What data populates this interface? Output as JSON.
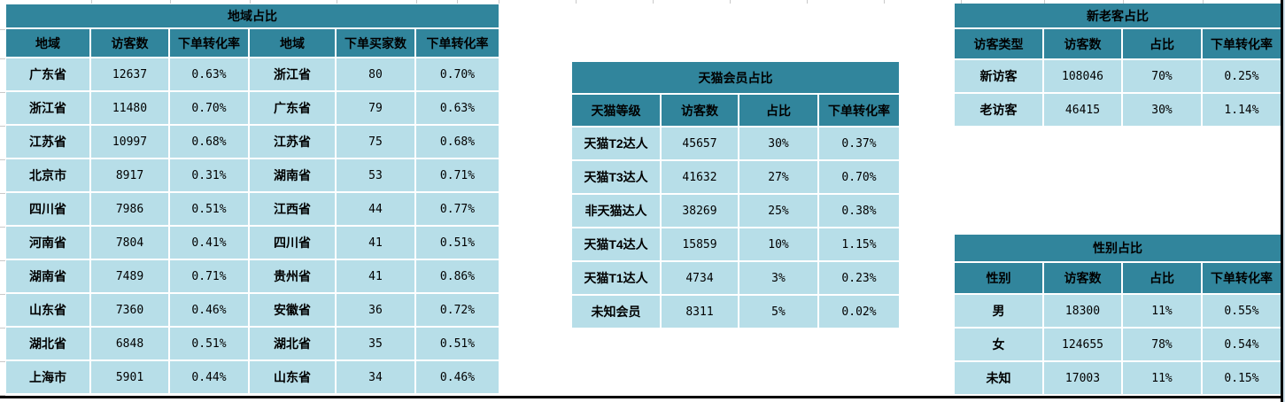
{
  "colors": {
    "header_teal": "#31859C",
    "row_blue": "#B7DEE8",
    "separator_white": "#FFFFFF",
    "page_background": "#FFFFFF",
    "border_black": "#000000"
  },
  "tables": {
    "region": {
      "title": "地域占比",
      "headers": [
        "地域",
        "访客数",
        "下单转化率",
        "地域",
        "下单买家数",
        "下单转化率"
      ],
      "rows": [
        [
          "广东省",
          "12637",
          "0.63%",
          "浙江省",
          "80",
          "0.70%"
        ],
        [
          "浙江省",
          "11480",
          "0.70%",
          "广东省",
          "79",
          "0.63%"
        ],
        [
          "江苏省",
          "10997",
          "0.68%",
          "江苏省",
          "75",
          "0.68%"
        ],
        [
          "北京市",
          "8917",
          "0.31%",
          "湖南省",
          "53",
          "0.71%"
        ],
        [
          "四川省",
          "7986",
          "0.51%",
          "江西省",
          "44",
          "0.77%"
        ],
        [
          "河南省",
          "7804",
          "0.41%",
          "四川省",
          "41",
          "0.51%"
        ],
        [
          "湖南省",
          "7489",
          "0.71%",
          "贵州省",
          "41",
          "0.86%"
        ],
        [
          "山东省",
          "7360",
          "0.46%",
          "安徽省",
          "36",
          "0.72%"
        ],
        [
          "湖北省",
          "6848",
          "0.51%",
          "湖北省",
          "35",
          "0.51%"
        ],
        [
          "上海市",
          "5901",
          "0.44%",
          "山东省",
          "34",
          "0.46%"
        ]
      ]
    },
    "member": {
      "title": "天猫会员占比",
      "headers": [
        "天猫等级",
        "访客数",
        "占比",
        "下单转化率"
      ],
      "rows": [
        [
          "天猫T2达人",
          "45657",
          "30%",
          "0.37%"
        ],
        [
          "天猫T3达人",
          "41632",
          "27%",
          "0.70%"
        ],
        [
          "非天猫达人",
          "38269",
          "25%",
          "0.38%"
        ],
        [
          "天猫T4达人",
          "15859",
          "10%",
          "1.15%"
        ],
        [
          "天猫T1达人",
          "4734",
          "3%",
          "0.23%"
        ],
        [
          "未知会员",
          "8311",
          "5%",
          "0.02%"
        ]
      ]
    },
    "newold": {
      "title": "新老客占比",
      "headers": [
        "访客类型",
        "访客数",
        "占比",
        "下单转化率"
      ],
      "rows": [
        [
          "新访客",
          "108046",
          "70%",
          "0.25%"
        ],
        [
          "老访客",
          "46415",
          "30%",
          "1.14%"
        ]
      ]
    },
    "gender": {
      "title": "性别占比",
      "headers": [
        "性别",
        "访客数",
        "占比",
        "下单转化率"
      ],
      "rows": [
        [
          "男",
          "18300",
          "11%",
          "0.55%"
        ],
        [
          "女",
          "124655",
          "78%",
          "0.54%"
        ],
        [
          "未知",
          "17003",
          "11%",
          "0.15%"
        ]
      ]
    }
  }
}
